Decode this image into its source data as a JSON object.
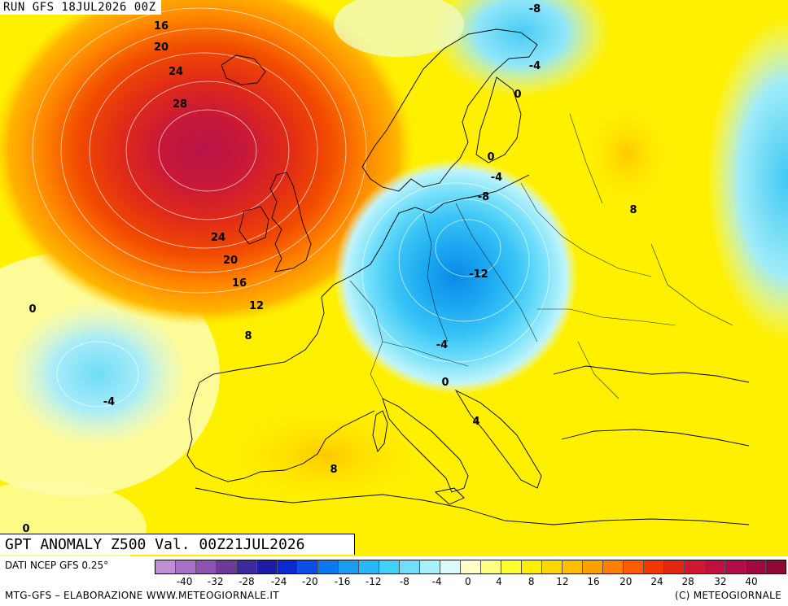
{
  "header": {
    "run_label": "RUN GFS 18JUL2026 00Z"
  },
  "title": "GPT ANOMALY Z500 Val. 00Z21JUL2026",
  "footer": {
    "data_source": "DATI NCEP GFS 0.25°",
    "credits": "MTG-GFS – ELABORAZIONE WWW.METEOGIORNALE.IT",
    "copyright": "(C) METEOGIORNALE"
  },
  "legend": {
    "colors": [
      "#c08fd6",
      "#a770c8",
      "#8e52b2",
      "#6e3a9a",
      "#3c2a9c",
      "#1c1ca8",
      "#0a2ad0",
      "#0a4ee6",
      "#0a78ee",
      "#1a9cf2",
      "#28b8f6",
      "#40d0f8",
      "#70e0fa",
      "#a8f0fa",
      "#d8fafa",
      "#ffffc8",
      "#ffff80",
      "#ffff30",
      "#fff000",
      "#ffd800",
      "#ffbf00",
      "#ffa000",
      "#ff8000",
      "#ff5c00",
      "#f03800",
      "#e02810",
      "#d01830",
      "#c01040",
      "#b00c48",
      "#a00840",
      "#900838"
    ],
    "ticks": [
      "-40",
      "-32",
      "-28",
      "-24",
      "-20",
      "-16",
      "-12",
      "-8",
      "-4",
      "0",
      "4",
      "8",
      "12",
      "16",
      "20",
      "24",
      "28",
      "32",
      "40"
    ]
  },
  "contour_labels": [
    {
      "text": "16"
    },
    {
      "text": "20"
    },
    {
      "text": "24"
    },
    {
      "text": "28"
    },
    {
      "text": "24"
    },
    {
      "text": "20"
    },
    {
      "text": "16"
    },
    {
      "text": "12"
    },
    {
      "text": "8"
    },
    {
      "text": "0"
    },
    {
      "text": "-4"
    },
    {
      "text": "0"
    },
    {
      "text": "-8"
    },
    {
      "text": "-4"
    },
    {
      "text": "0"
    },
    {
      "text": "0"
    },
    {
      "text": "-4"
    },
    {
      "text": "-8"
    },
    {
      "text": "-12"
    },
    {
      "text": "-4"
    },
    {
      "text": "0"
    },
    {
      "text": "4"
    },
    {
      "text": "8"
    },
    {
      "text": "8"
    }
  ]
}
